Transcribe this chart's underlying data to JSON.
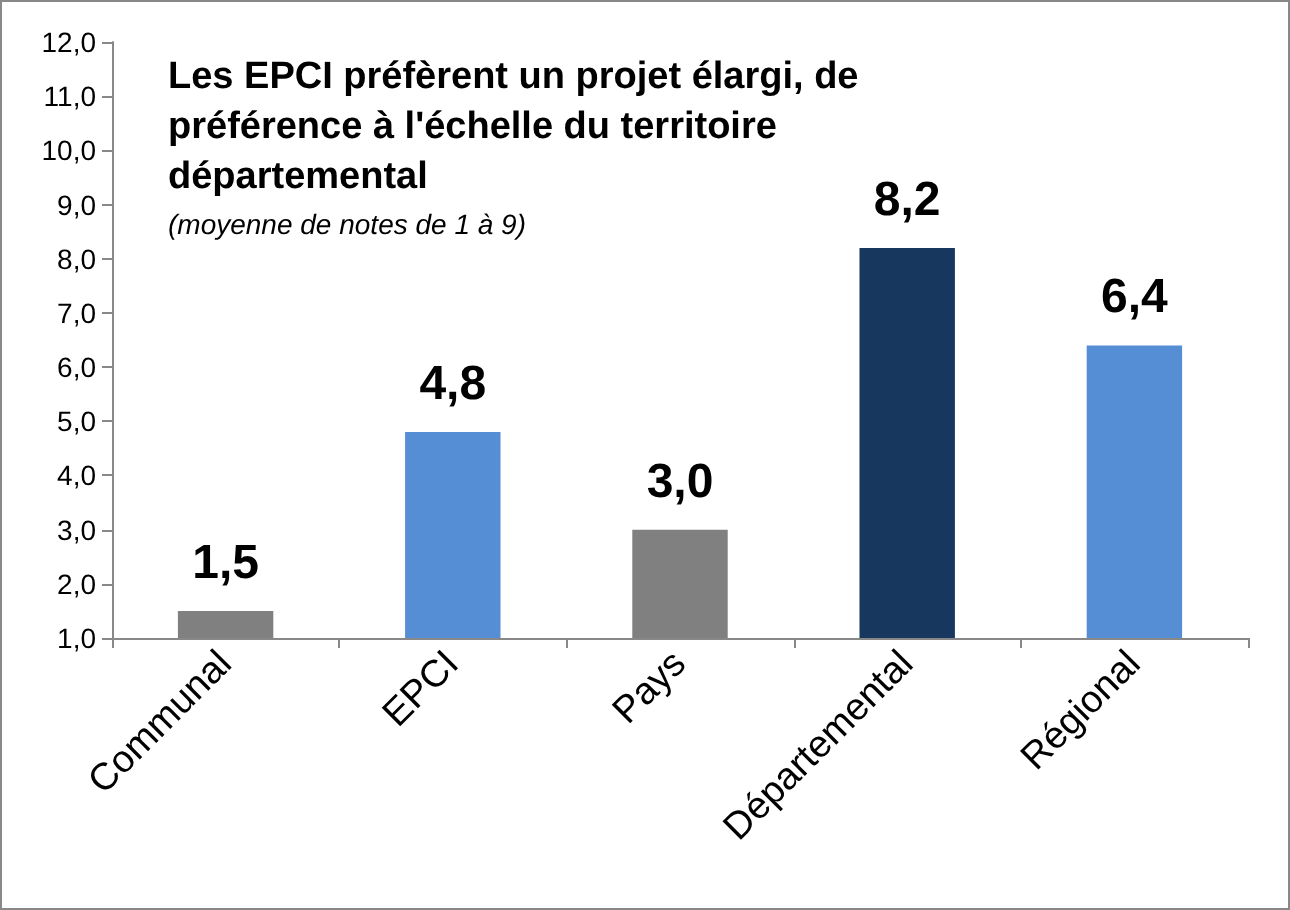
{
  "chart_data": {
    "type": "bar",
    "title": "Les EPCI préfèrent un projet élargi, de préférence à l'échelle du territoire départemental",
    "subtitle": "(moyenne de notes de 1 à 9)",
    "categories": [
      "Communal",
      "EPCI",
      "Pays",
      "Départemental",
      "Régional"
    ],
    "values": [
      1.5,
      4.8,
      3.0,
      8.2,
      6.4
    ],
    "colors": [
      "#808080",
      "#558ed5",
      "#808080",
      "#17375e",
      "#558ed5"
    ],
    "value_labels": [
      "1,5",
      "4,8",
      "3,0",
      "8,2",
      "6,4"
    ],
    "ylim": [
      1,
      12
    ],
    "yticks": [
      {
        "value": 1,
        "label": "1,0"
      },
      {
        "value": 2,
        "label": "2,0"
      },
      {
        "value": 3,
        "label": "3,0"
      },
      {
        "value": 4,
        "label": "4,0"
      },
      {
        "value": 5,
        "label": "5,0"
      },
      {
        "value": 6,
        "label": "6,0"
      },
      {
        "value": 7,
        "label": "7,0"
      },
      {
        "value": 8,
        "label": "8,0"
      },
      {
        "value": 9,
        "label": "9,0"
      },
      {
        "value": 10,
        "label": "10,0"
      },
      {
        "value": 11,
        "label": "11,0"
      },
      {
        "value": 12,
        "label": "12,0"
      }
    ],
    "grid": false
  }
}
